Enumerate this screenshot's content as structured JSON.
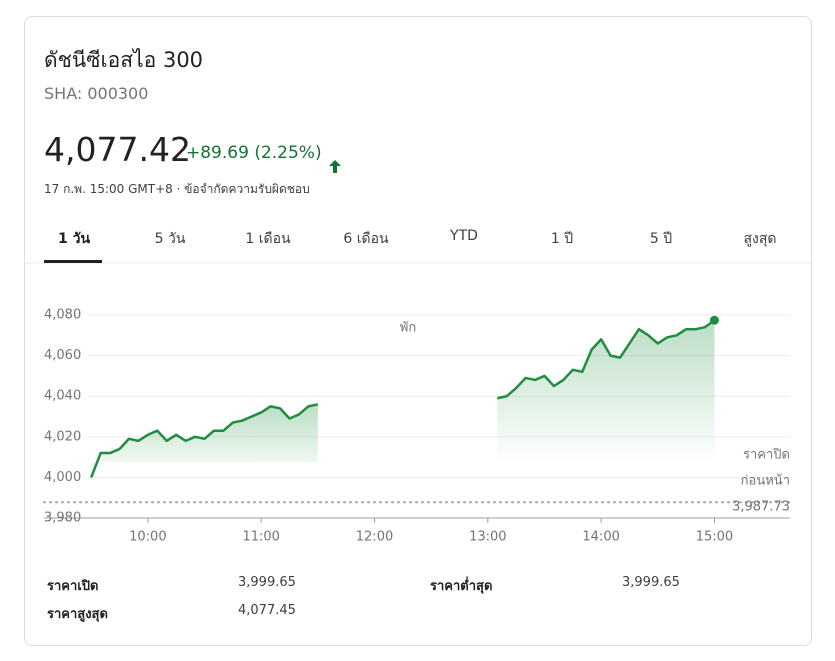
{
  "header": {
    "title": "ดัชนีซีเอสไอ 300",
    "symbol": "SHA: 000300",
    "price": "4,077.42",
    "change": "+89.69 (2.25%)",
    "timestamp": "17 ก.พ. 15:00 GMT+8 · ข้อจำกัดความรับผิดชอบ"
  },
  "tabs": {
    "items": [
      "1 วัน",
      "5 วัน",
      "1 เดือน",
      "6 เดือน",
      "YTD",
      "1 ปี",
      "5 ปี",
      "สูงสุด"
    ],
    "selected": 0
  },
  "chart_data": {
    "type": "line",
    "color": "#1e8e3e",
    "break_label": "พัก",
    "xlim": [
      545,
      940
    ],
    "ylim": [
      3980,
      4080
    ],
    "xticks": [
      {
        "value": 600,
        "label": "10:00"
      },
      {
        "value": 660,
        "label": "11:00"
      },
      {
        "value": 720,
        "label": "12:00"
      },
      {
        "value": 780,
        "label": "13:00"
      },
      {
        "value": 840,
        "label": "14:00"
      },
      {
        "value": 900,
        "label": "15:00"
      }
    ],
    "yticks": [
      {
        "value": 3980,
        "label": "3,980"
      },
      {
        "value": 4000,
        "label": "4,000"
      },
      {
        "value": 4020,
        "label": "4,020"
      },
      {
        "value": 4040,
        "label": "4,040"
      },
      {
        "value": 4060,
        "label": "4,060"
      },
      {
        "value": 4080,
        "label": "4,080"
      }
    ],
    "grid": true,
    "previous_close": {
      "text": [
        "ราคาปิด",
        "ก่อนหน้า"
      ],
      "value": 3987.73,
      "label": "3,987.73"
    },
    "series": [
      {
        "x": [
          570,
          575,
          580,
          585,
          590,
          595,
          600,
          605,
          610,
          615,
          620,
          625,
          630,
          635,
          640,
          645,
          650,
          655,
          660,
          665,
          670,
          675,
          680,
          685,
          690
        ],
        "values": [
          4000,
          4012,
          4012,
          4014,
          4019,
          4018,
          4021,
          4023,
          4018,
          4021,
          4018,
          4020,
          4019,
          4023,
          4023,
          4027,
          4028,
          4030,
          4032,
          4035,
          4034,
          4029,
          4031,
          4035,
          4036
        ]
      },
      {
        "x": [
          785,
          790,
          795,
          800,
          805,
          810,
          815,
          820,
          825,
          830,
          835,
          840,
          845,
          850,
          855,
          860,
          865,
          870,
          875,
          880,
          885,
          890,
          895,
          900
        ],
        "values": [
          4039,
          4040,
          4044,
          4049,
          4048,
          4050,
          4045,
          4048,
          4053,
          4052,
          4063,
          4068,
          4060,
          4059,
          4066,
          4073,
          4070,
          4066,
          4069,
          4070,
          4073,
          4073,
          4074,
          4077.42
        ]
      }
    ]
  },
  "stats": [
    {
      "label": "ราคาเปิด",
      "value": "3,999.65"
    },
    {
      "label": "ราคาต่ำสุด",
      "value": "3,999.65"
    },
    {
      "label": "ราคาสูงสุด",
      "value": "4,077.45"
    }
  ]
}
